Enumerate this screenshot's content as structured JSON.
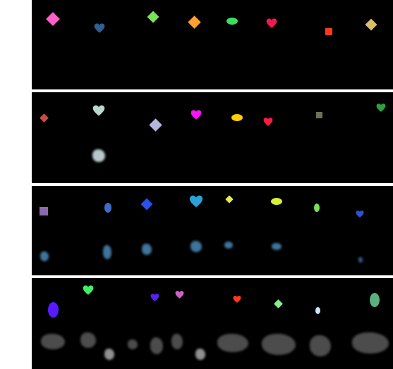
{
  "panels": [
    {
      "name": "row-1",
      "shapes": [
        {
          "kind": "diamond",
          "color": "#ff5fc8"
        },
        {
          "kind": "heart",
          "color": "#2f5f95"
        },
        {
          "kind": "diamond",
          "color": "#7be05c"
        },
        {
          "kind": "diamond",
          "color": "#ffa030"
        },
        {
          "kind": "ellipse",
          "color": "#38e060"
        },
        {
          "kind": "heart",
          "color": "#f01a52"
        },
        {
          "kind": "square",
          "color": "#ff3a1a"
        },
        {
          "kind": "diamond",
          "color": "#d8c06a"
        }
      ],
      "blurred": []
    },
    {
      "name": "row-2",
      "shapes": [
        {
          "kind": "diamond",
          "color": "#c94a45"
        },
        {
          "kind": "heart",
          "color": "#b9d8d0"
        },
        {
          "kind": "diamond",
          "color": "#b7b4de"
        },
        {
          "kind": "heart",
          "color": "#ff10ff"
        },
        {
          "kind": "ellipse",
          "color": "#ffcf00"
        },
        {
          "kind": "heart",
          "color": "#ff1a45"
        },
        {
          "kind": "square",
          "color": "#6a7255"
        },
        {
          "kind": "heart",
          "color": "#2fa040"
        }
      ],
      "blurred": [
        {
          "color": "#d8ecf0"
        }
      ]
    },
    {
      "name": "row-3",
      "shapes": [
        {
          "kind": "square",
          "color": "#8a6aaf"
        },
        {
          "kind": "ellipse",
          "color": "#3c6cc8"
        },
        {
          "kind": "diamond",
          "color": "#2a50f0"
        },
        {
          "kind": "heart",
          "color": "#2aa0d8"
        },
        {
          "kind": "diamond",
          "color": "#e8f040"
        },
        {
          "kind": "ellipse",
          "color": "#d8f030"
        },
        {
          "kind": "ellipse",
          "color": "#7be050"
        },
        {
          "kind": "heart",
          "color": "#2a52d8"
        }
      ],
      "blurred": [
        {
          "color": "#4a8ab8"
        },
        {
          "color": "#4a8ab8"
        },
        {
          "color": "#4a8ab8"
        },
        {
          "color": "#4a8ab8"
        },
        {
          "color": "#4a8ab8"
        },
        {
          "color": "#4a8ab8"
        },
        {
          "color": "#3a70a0"
        }
      ]
    },
    {
      "name": "row-4",
      "shapes": [
        {
          "kind": "ellipse",
          "color": "#5a1aff"
        },
        {
          "kind": "heart",
          "color": "#40f060"
        },
        {
          "kind": "heart",
          "color": "#5a20f0"
        },
        {
          "kind": "heart",
          "color": "#d060c8"
        },
        {
          "kind": "heart",
          "color": "#ff3a1a"
        },
        {
          "kind": "diamond",
          "color": "#80f090"
        },
        {
          "kind": "ellipse",
          "color": "#c8e8f8"
        },
        {
          "kind": "ellipse",
          "color": "#5ab080"
        }
      ],
      "blurred": [
        {
          "color": "#5a5a5a"
        },
        {
          "color": "#5a5a5a"
        },
        {
          "color": "#aaaaaa"
        },
        {
          "color": "#5a5a5a"
        },
        {
          "color": "#5a5a5a"
        },
        {
          "color": "#5a5a5a"
        },
        {
          "color": "#aaaaaa"
        },
        {
          "color": "#5a5a5a"
        },
        {
          "color": "#5a5a5a"
        },
        {
          "color": "#5a5a5a"
        },
        {
          "color": "#5a5a5a"
        }
      ]
    }
  ]
}
